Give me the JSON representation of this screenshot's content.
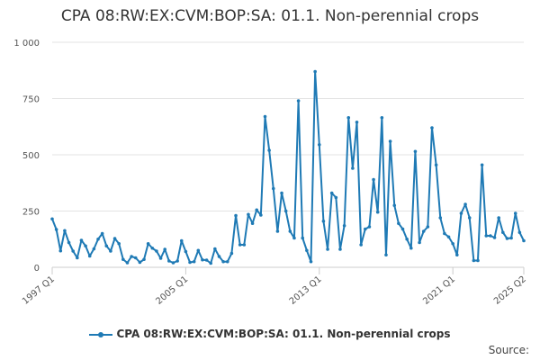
{
  "chart_data": {
    "type": "line",
    "title": "CPA 08:RW:EX:CVM:BOP:SA: 01.1. Non-perennial crops",
    "xlabel": "",
    "ylabel": "",
    "ylim": [
      0,
      1000
    ],
    "y_ticks": [
      0,
      250,
      500,
      750,
      1000
    ],
    "y_tick_labels": [
      "0",
      "250",
      "500",
      "750",
      "1 000"
    ],
    "x_tick_labels": [
      "1997 Q1",
      "2005 Q1",
      "2013 Q1",
      "2021 Q1",
      "2025 Q2"
    ],
    "x_tick_indices": [
      0,
      32,
      64,
      96,
      113
    ],
    "grid": true,
    "legend_position": "bottom",
    "color": "#1f7ab5",
    "series": [
      {
        "name": "CPA 08:RW:EX:CVM:BOP:SA: 01.1. Non-perennial crops",
        "values": [
          215,
          168,
          73,
          163,
          110,
          72,
          42,
          120,
          95,
          50,
          82,
          125,
          150,
          95,
          72,
          128,
          105,
          35,
          20,
          48,
          42,
          22,
          35,
          105,
          85,
          72,
          40,
          80,
          28,
          20,
          28,
          118,
          70,
          22,
          25,
          75,
          33,
          32,
          18,
          82,
          48,
          25,
          25,
          62,
          230,
          100,
          100,
          235,
          195,
          255,
          232,
          670,
          520,
          350,
          160,
          330,
          250,
          160,
          130,
          740,
          130,
          75,
          25,
          870,
          545,
          205,
          80,
          330,
          310,
          80,
          185,
          665,
          440,
          645,
          100,
          170,
          180,
          390,
          245,
          665,
          55,
          560,
          275,
          195,
          170,
          125,
          85,
          515,
          110,
          160,
          180,
          620,
          455,
          220,
          150,
          135,
          105,
          55,
          240,
          280,
          220,
          30,
          30,
          455,
          140,
          140,
          132,
          220,
          155,
          128,
          130,
          240,
          155,
          118
        ]
      }
    ]
  },
  "legend": {
    "label": "CPA 08:RW:EX:CVM:BOP:SA: 01.1. Non-perennial crops"
  },
  "source": {
    "label": "Source:"
  }
}
